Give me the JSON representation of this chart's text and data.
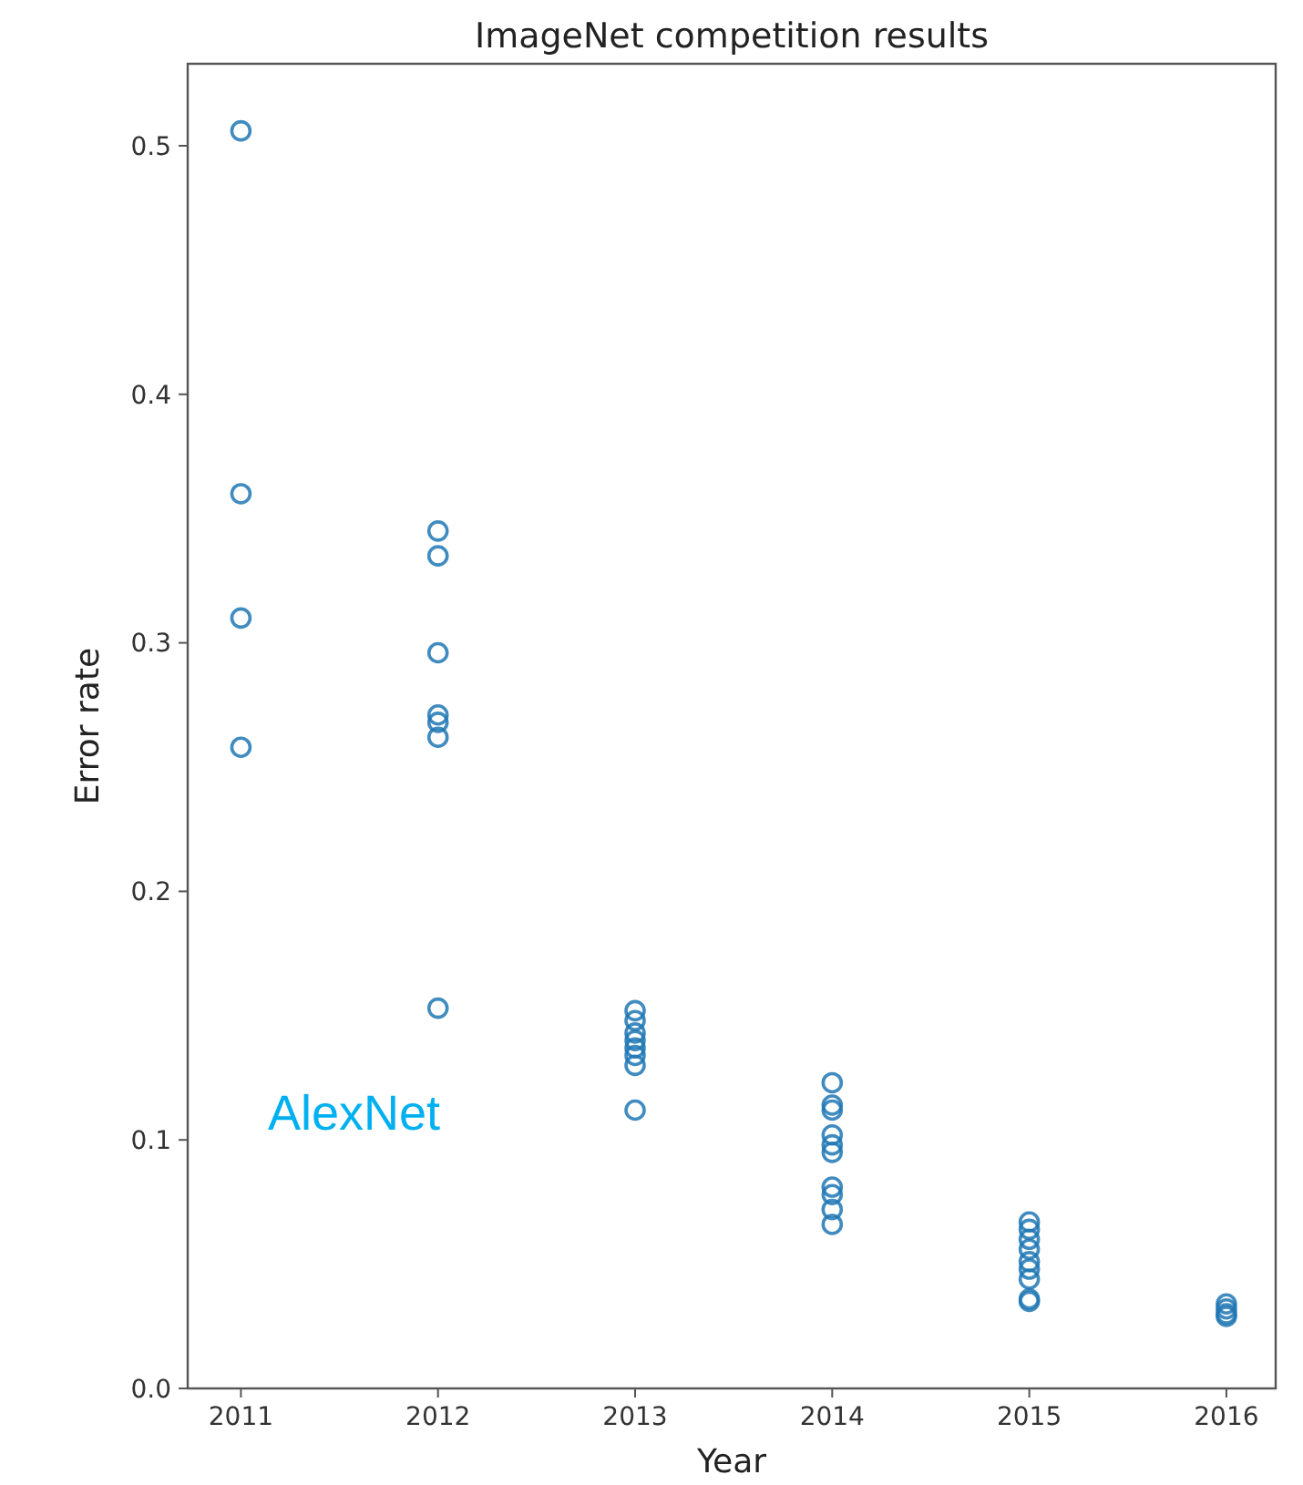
{
  "chart_data": {
    "type": "scatter",
    "title": "ImageNet competition results",
    "xlabel": "Year",
    "ylabel": "Error rate",
    "annotations": [
      "AlexNet"
    ],
    "marker": "circle",
    "grid": false,
    "xlim": [
      2010.73,
      2016.25
    ],
    "xticks": [
      2011,
      2012,
      2013,
      2014,
      2015,
      2016
    ],
    "ylim": [
      0,
      0.533
    ],
    "yticks": [
      {
        "value": 0,
        "label": "0.0"
      },
      0.1,
      0.2,
      0.3,
      0.4,
      0.5
    ],
    "series": [
      {
        "color": "#1f77b4",
        "x": [
          2011,
          2011,
          2011,
          2011,
          2012,
          2012,
          2012,
          2012,
          2012,
          2012,
          2012,
          2013,
          2013,
          2013,
          2013,
          2013,
          2013,
          2013,
          2013,
          2014,
          2014,
          2014,
          2014,
          2014,
          2014,
          2014,
          2014,
          2014,
          2014,
          2015,
          2015,
          2015,
          2015,
          2015,
          2015,
          2015,
          2015,
          2015,
          2016,
          2016,
          2016,
          2016
        ],
        "values": [
          0.506,
          0.36,
          0.31,
          0.258,
          0.345,
          0.335,
          0.296,
          0.271,
          0.268,
          0.262,
          0.153,
          0.152,
          0.148,
          0.143,
          0.14,
          0.137,
          0.134,
          0.13,
          0.112,
          0.123,
          0.114,
          0.112,
          0.102,
          0.098,
          0.095,
          0.081,
          0.078,
          0.072,
          0.066,
          0.067,
          0.064,
          0.06,
          0.056,
          0.051,
          0.048,
          0.044,
          0.036,
          0.035,
          0.034,
          0.032,
          0.03,
          0.029
        ]
      }
    ]
  }
}
